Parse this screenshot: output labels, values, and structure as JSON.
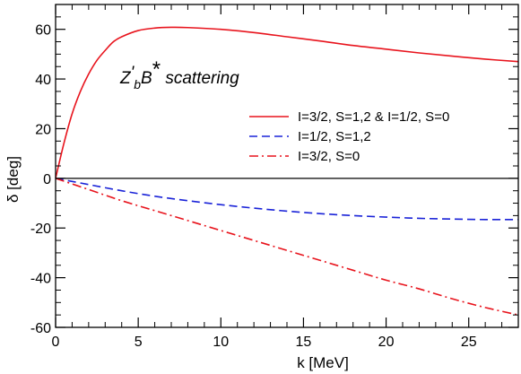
{
  "chart_data": {
    "type": "line",
    "xlabel": "k [MeV]",
    "ylabel": "δ [deg]",
    "xlim": [
      0,
      28
    ],
    "ylim": [
      -60,
      70
    ],
    "xticks": [
      0,
      5,
      10,
      15,
      20,
      25
    ],
    "yticks": [
      -60,
      -40,
      -20,
      0,
      20,
      40,
      60
    ],
    "grid": false,
    "legend_position": "right",
    "annotation": {
      "main": "Z",
      "prime": "'",
      "sub": "b",
      "after": "B",
      "star": "*",
      "tail": " scattering"
    },
    "series": [
      {
        "name": "I=3/2, S=1,2 & I=1/2, S=0",
        "color": "#e8141d",
        "dash": "solid",
        "x": [
          0,
          0.5,
          1,
          1.5,
          2,
          2.5,
          3,
          3.5,
          4,
          5,
          6,
          7,
          8,
          10,
          12,
          14,
          16,
          18,
          20,
          22,
          24,
          26,
          28
        ],
        "y": [
          0,
          14,
          26,
          35,
          42,
          47.5,
          51.5,
          55,
          57,
          59.5,
          60.5,
          60.8,
          60.7,
          60,
          58.7,
          57,
          55.3,
          53.5,
          52,
          50.5,
          49.2,
          48,
          47
        ]
      },
      {
        "name": "I=1/2, S=1,2",
        "color": "#1a23d8",
        "dash": "dashed",
        "x": [
          0,
          2,
          4,
          6,
          8,
          10,
          12,
          14,
          16,
          18,
          20,
          22,
          24,
          26,
          28
        ],
        "y": [
          0,
          -2.5,
          -5,
          -7.2,
          -9,
          -10.6,
          -12,
          -13.2,
          -14.2,
          -15,
          -15.6,
          -16.1,
          -16.4,
          -16.6,
          -16.6
        ]
      },
      {
        "name": "I=3/2, S=0",
        "color": "#e8141d",
        "dash": "dashdot",
        "x": [
          0,
          2,
          4,
          6,
          8,
          10,
          12,
          14,
          16,
          18,
          20,
          22,
          24,
          26,
          28
        ],
        "y": [
          0,
          -4.5,
          -9,
          -13,
          -17,
          -21,
          -25,
          -29,
          -33,
          -37,
          -41,
          -44.5,
          -48.5,
          -52,
          -55
        ]
      }
    ],
    "reference_line": {
      "y": 0,
      "color": "#000000"
    }
  }
}
